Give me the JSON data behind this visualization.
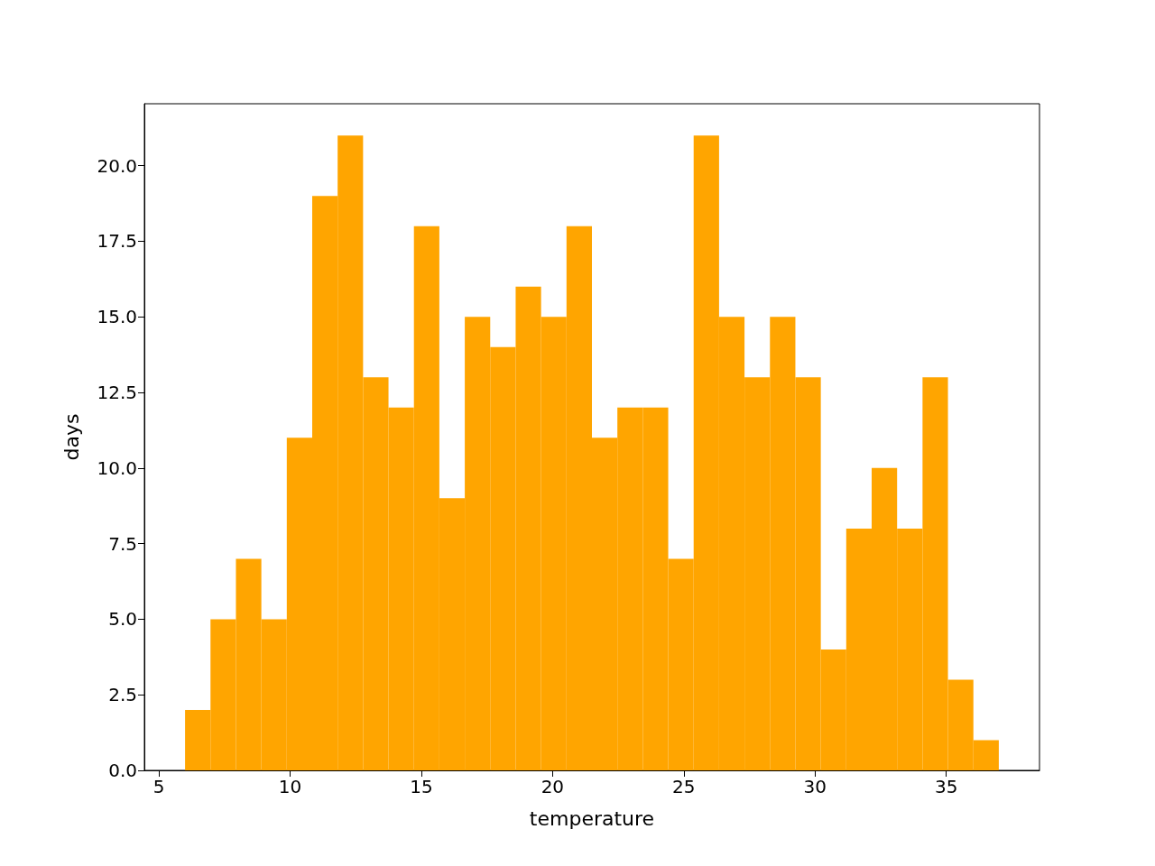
{
  "chart_data": {
    "type": "histogram",
    "xlabel": "temperature",
    "ylabel": "days",
    "color": "#ffa500",
    "bins": [
      6,
      6.96875,
      7.9375,
      8.90625,
      9.875,
      10.84375,
      11.8125,
      12.78125,
      13.75,
      14.71875,
      15.6875,
      16.65625,
      17.625,
      18.59375,
      19.5625,
      20.53125,
      21.5,
      22.46875,
      23.4375,
      24.40625,
      25.375,
      26.34375,
      27.3125,
      28.28125,
      29.25,
      30.21875,
      31.1875,
      32.15625,
      33.125,
      34.09375,
      35.0625,
      36.03125,
      37
    ],
    "values": [
      2,
      5,
      7,
      5,
      11,
      19,
      21,
      13,
      12,
      18,
      9,
      15,
      14,
      16,
      15,
      18,
      11,
      12,
      12,
      7,
      21,
      15,
      13,
      15,
      13,
      4,
      8,
      10,
      8,
      13,
      3,
      1
    ],
    "xlim": [
      4.45,
      38.55
    ],
    "xticks": [
      5,
      10,
      15,
      20,
      25,
      30,
      35
    ],
    "ylim": [
      0,
      22.05
    ],
    "yticks": [
      {
        "value": 0,
        "label": "0.0"
      },
      {
        "value": 2.5,
        "label": "2.5"
      },
      {
        "value": 5,
        "label": "5.0"
      },
      {
        "value": 7.5,
        "label": "7.5"
      },
      {
        "value": 10,
        "label": "10.0"
      },
      {
        "value": 12.5,
        "label": "12.5"
      },
      {
        "value": 15,
        "label": "15.0"
      },
      {
        "value": 17.5,
        "label": "17.5"
      },
      {
        "value": 20,
        "label": "20.0"
      }
    ],
    "grid": false
  }
}
